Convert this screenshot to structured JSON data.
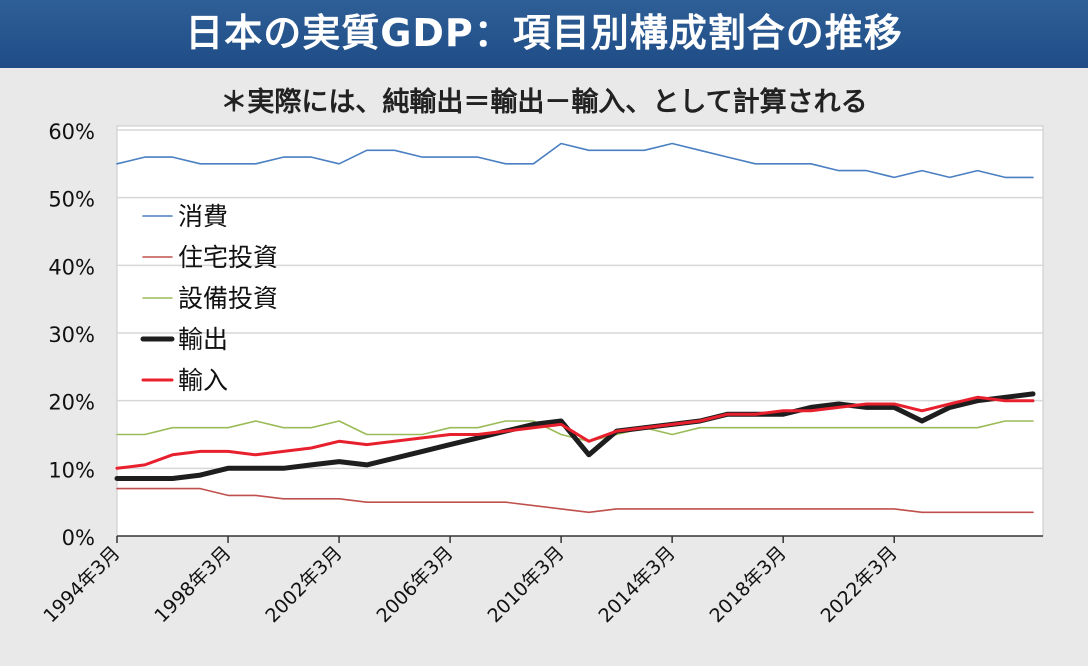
{
  "header": {
    "title": "日本の実質GDP：項目別構成割合の推移",
    "subtitle": "＊実際には、純輸出＝輸出－輸入、として計算される"
  },
  "chart_data": {
    "type": "line",
    "x": [
      "1994年3月",
      "1995年3月",
      "1996年3月",
      "1997年3月",
      "1998年3月",
      "1999年3月",
      "2000年3月",
      "2001年3月",
      "2002年3月",
      "2003年3月",
      "2004年3月",
      "2005年3月",
      "2006年3月",
      "2007年3月",
      "2008年3月",
      "2009年3月",
      "2010年3月",
      "2011年3月",
      "2012年3月",
      "2013年3月",
      "2014年3月",
      "2015年3月",
      "2016年3月",
      "2017年3月",
      "2018年3月",
      "2019年3月",
      "2020年3月",
      "2021年3月",
      "2022年3月",
      "2023年3月",
      "2024年3月",
      "2025年3月",
      "2026年3月",
      "2026年9月"
    ],
    "x_tick_labels": [
      "1994年3月",
      "1998年3月",
      "2002年3月",
      "2006年3月",
      "2010年3月",
      "2014年3月",
      "2018年3月",
      "2022年3月"
    ],
    "ylim": [
      0,
      60
    ],
    "y_ticks": [
      "0%",
      "10%",
      "20%",
      "30%",
      "40%",
      "50%",
      "60%"
    ],
    "grid": true,
    "legend_position": "upper-left",
    "series": [
      {
        "name": "消費",
        "color": "#4a7fc1",
        "width": 1.6,
        "values": [
          55,
          56,
          56,
          55,
          55,
          55,
          56,
          56,
          55,
          57,
          57,
          56,
          56,
          56,
          55,
          55,
          58,
          57,
          57,
          57,
          58,
          57,
          56,
          55,
          55,
          55,
          54,
          54,
          53,
          54,
          53,
          54,
          53,
          53
        ]
      },
      {
        "name": "住宅投資",
        "color": "#c0504d",
        "width": 1.6,
        "values": [
          7,
          7,
          7,
          7,
          6,
          6,
          5.5,
          5.5,
          5.5,
          5,
          5,
          5,
          5,
          5,
          5,
          4.5,
          4,
          3.5,
          4,
          4,
          4,
          4,
          4,
          4,
          4,
          4,
          4,
          4,
          4,
          3.5,
          3.5,
          3.5,
          3.5,
          3.5
        ]
      },
      {
        "name": "設備投資",
        "color": "#9bbb59",
        "width": 1.6,
        "values": [
          15,
          15,
          16,
          16,
          16,
          17,
          16,
          16,
          17,
          15,
          15,
          15,
          16,
          16,
          17,
          17,
          15,
          14,
          15,
          16,
          15,
          16,
          16,
          16,
          16,
          16,
          16,
          16,
          16,
          16,
          16,
          16,
          17,
          17
        ]
      },
      {
        "name": "輸出",
        "color": "#1e1e1e",
        "width": 5,
        "values": [
          8.5,
          8.5,
          8.5,
          9,
          10,
          10,
          10,
          10.5,
          11,
          10.5,
          11.5,
          12.5,
          13.5,
          14.5,
          15.5,
          16.5,
          17,
          12,
          15.5,
          16,
          16.5,
          17,
          18,
          18,
          18,
          19,
          19.5,
          19,
          19,
          17,
          19,
          20,
          20.5,
          21
        ]
      },
      {
        "name": "輸入",
        "color": "#e8202e",
        "width": 3,
        "values": [
          10,
          10.5,
          12,
          12.5,
          12.5,
          12,
          12.5,
          13,
          14,
          13.5,
          14,
          14.5,
          15,
          15,
          15.5,
          16,
          16.5,
          14,
          15.5,
          16,
          16.5,
          17,
          18,
          18,
          18.5,
          18.5,
          19,
          19.5,
          19.5,
          18.5,
          19.5,
          20.5,
          20,
          20
        ]
      }
    ]
  }
}
